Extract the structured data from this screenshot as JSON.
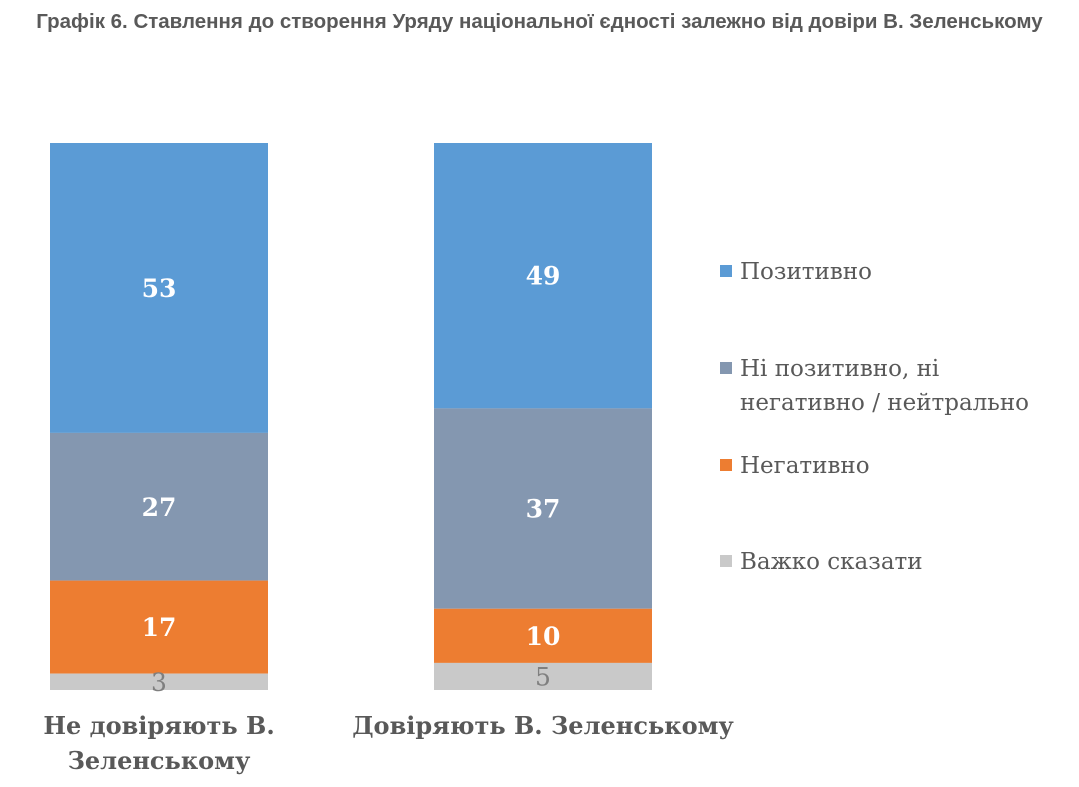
{
  "chart_data": {
    "type": "bar",
    "stacked": true,
    "title": "Графік 6. Ставлення до створення Уряду національної єдності залежно від довіри В. Зеленському",
    "categories": [
      "Не довіряють В. Зеленському",
      "Довіряють В. Зеленському"
    ],
    "series": [
      {
        "name": "Позитивно",
        "values": [
          53,
          49
        ],
        "color": "#5b9bd5"
      },
      {
        "name": "Ні позитивно, ні негативно / нейтрально",
        "values": [
          27,
          37
        ],
        "color": "#8497b0"
      },
      {
        "name": "Негативно",
        "values": [
          17,
          10
        ],
        "color": "#ed7d31"
      },
      {
        "name": "Важко сказати",
        "values": [
          3,
          5
        ],
        "color": "#c9c9c9"
      }
    ],
    "ylim": [
      0,
      100
    ],
    "grid": false,
    "legend": "right"
  }
}
